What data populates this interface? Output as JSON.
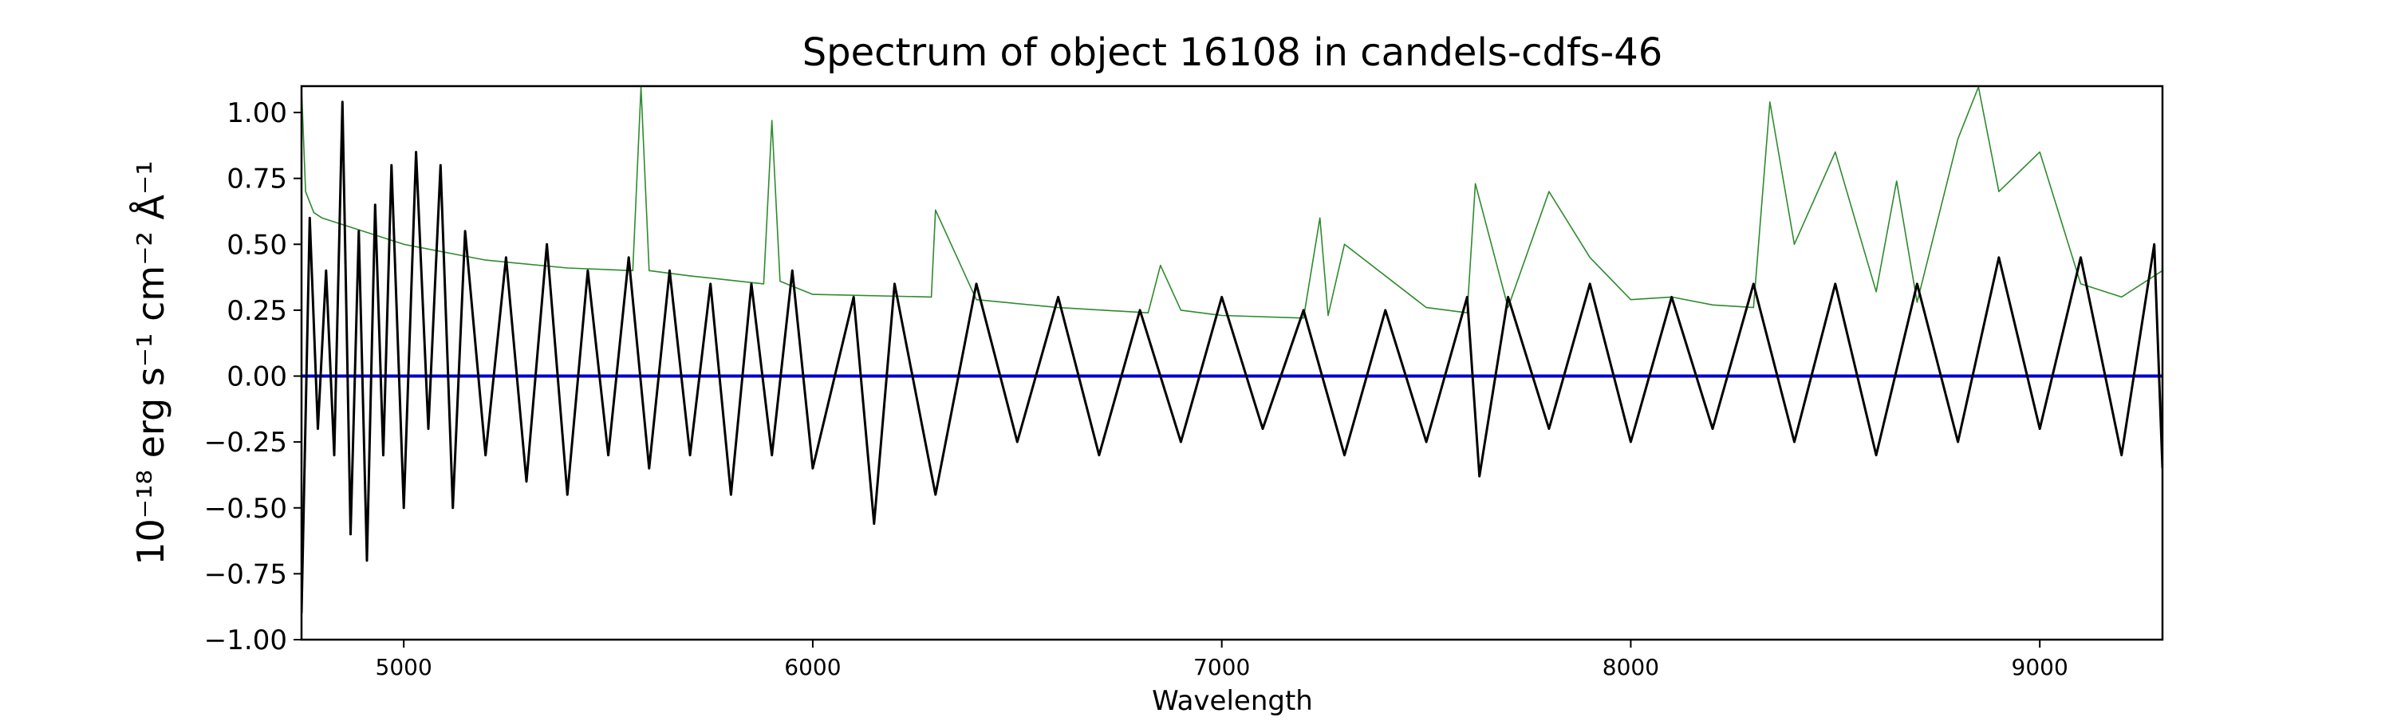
{
  "chart_data": {
    "type": "line",
    "title": "Spectrum of object 16108 in candels-cdfs-46",
    "xlabel": "Wavelength",
    "ylabel": "10⁻¹⁸ erg s⁻¹ cm⁻² Å⁻¹",
    "xlim": [
      4750,
      9300
    ],
    "ylim": [
      -1.0,
      1.1
    ],
    "xticks": [
      5000,
      6000,
      7000,
      8000,
      9000
    ],
    "xtick_labels": [
      "5000",
      "6000",
      "7000",
      "8000",
      "9000"
    ],
    "yticks": [
      -1.0,
      -0.75,
      -0.5,
      -0.25,
      0.0,
      0.25,
      0.5,
      0.75,
      1.0
    ],
    "ytick_labels": [
      "−1.00",
      "−0.75",
      "−0.50",
      "−0.25",
      "0.00",
      "0.25",
      "0.50",
      "0.75",
      "1.00"
    ],
    "grid": false,
    "colors": {
      "flux": "#000000",
      "error": "#2e8b2e",
      "zero": "#0000cc"
    },
    "series": [
      {
        "role": "flux",
        "x": [
          4750,
          4770,
          4790,
          4810,
          4830,
          4850,
          4870,
          4890,
          4910,
          4930,
          4950,
          4970,
          5000,
          5030,
          5060,
          5090,
          5120,
          5150,
          5200,
          5250,
          5300,
          5350,
          5400,
          5450,
          5500,
          5550,
          5600,
          5650,
          5700,
          5750,
          5800,
          5850,
          5900,
          5950,
          6000,
          6100,
          6150,
          6200,
          6300,
          6400,
          6500,
          6600,
          6700,
          6800,
          6900,
          7000,
          7100,
          7200,
          7300,
          7400,
          7500,
          7600,
          7630,
          7700,
          7800,
          7900,
          8000,
          8100,
          8200,
          8300,
          8400,
          8500,
          8600,
          8700,
          8800,
          8900,
          9000,
          9100,
          9200,
          9280,
          9300
        ],
        "y": [
          -0.9,
          0.6,
          -0.2,
          0.4,
          -0.3,
          1.04,
          -0.6,
          0.55,
          -0.7,
          0.65,
          -0.3,
          0.8,
          -0.5,
          0.85,
          -0.2,
          0.8,
          -0.5,
          0.55,
          -0.3,
          0.45,
          -0.4,
          0.5,
          -0.45,
          0.4,
          -0.3,
          0.45,
          -0.35,
          0.4,
          -0.3,
          0.35,
          -0.45,
          0.35,
          -0.3,
          0.4,
          -0.35,
          0.3,
          -0.56,
          0.35,
          -0.45,
          0.35,
          -0.25,
          0.3,
          -0.3,
          0.25,
          -0.25,
          0.3,
          -0.2,
          0.25,
          -0.3,
          0.25,
          -0.25,
          0.3,
          -0.38,
          0.3,
          -0.2,
          0.35,
          -0.25,
          0.3,
          -0.2,
          0.35,
          -0.25,
          0.35,
          -0.3,
          0.35,
          -0.25,
          0.45,
          -0.2,
          0.45,
          -0.3,
          0.5,
          -0.35
        ]
      },
      {
        "role": "error",
        "x": [
          4750,
          4760,
          4780,
          4800,
          4900,
          5000,
          5200,
          5400,
          5560,
          5580,
          5600,
          5700,
          5880,
          5900,
          5920,
          6000,
          6290,
          6300,
          6400,
          6600,
          6820,
          6850,
          6900,
          7000,
          7200,
          7240,
          7260,
          7300,
          7500,
          7600,
          7620,
          7700,
          7800,
          7900,
          8000,
          8100,
          8200,
          8300,
          8340,
          8400,
          8500,
          8600,
          8650,
          8700,
          8800,
          8850,
          8900,
          9000,
          9100,
          9200,
          9300
        ],
        "y": [
          1.1,
          0.7,
          0.62,
          0.6,
          0.55,
          0.5,
          0.44,
          0.41,
          0.4,
          1.1,
          0.4,
          0.38,
          0.35,
          0.97,
          0.36,
          0.31,
          0.3,
          0.63,
          0.29,
          0.26,
          0.24,
          0.42,
          0.25,
          0.23,
          0.22,
          0.6,
          0.23,
          0.5,
          0.26,
          0.24,
          0.73,
          0.26,
          0.7,
          0.45,
          0.29,
          0.3,
          0.27,
          0.26,
          1.04,
          0.5,
          0.85,
          0.32,
          0.74,
          0.28,
          0.9,
          1.1,
          0.7,
          0.85,
          0.35,
          0.3,
          0.4
        ]
      },
      {
        "role": "zero",
        "x": [
          4750,
          9300
        ],
        "y": [
          0.0,
          0.0
        ]
      }
    ]
  }
}
